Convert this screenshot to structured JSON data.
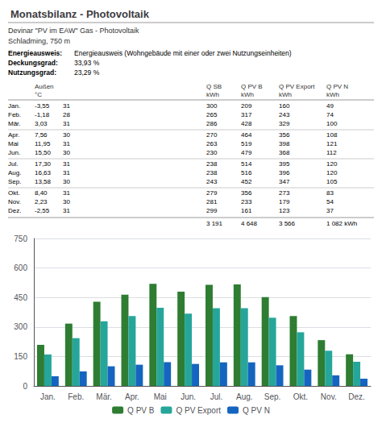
{
  "chart_data": {
    "type": "bar",
    "title": "Monatsbilanz - Photovoltaik",
    "subtitle": "Devinar \"PV im EAW\" Gas - Photovoltaik",
    "annotations": [
      "Schladming, 750 m"
    ],
    "info": [
      {
        "label": "Energieausweis:",
        "text": "Energieausweis (Wohngebäude mit einer oder zwei Nutzungseinheiten)"
      },
      {
        "label": "Deckungsgrad:",
        "text": "33,93 %"
      },
      {
        "label": "Nutzungsgrad:",
        "text": "23,29 %"
      }
    ],
    "categories": [
      "Jan.",
      "Feb.",
      "Mär.",
      "Apr.",
      "Mai",
      "Jun.",
      "Jul.",
      "Aug.",
      "Sep.",
      "Okt.",
      "Nov.",
      "Dez."
    ],
    "table": {
      "columns": [
        {
          "header": "Außen",
          "unit": "°C",
          "values": [
            {
              "value": -3.55,
              "label": "-3,55"
            },
            {
              "value": -1.18,
              "label": "-1,18"
            },
            {
              "value": 3.03,
              "label": "3,03"
            },
            {
              "value": 7.56,
              "label": "7,56"
            },
            {
              "value": 11.95,
              "label": "11,95"
            },
            {
              "value": 15.5,
              "label": "15,50"
            },
            {
              "value": 17.3,
              "label": "17,30"
            },
            {
              "value": 16.63,
              "label": "16,63"
            },
            {
              "value": 13.58,
              "label": "13,58"
            },
            {
              "value": 8.4,
              "label": "8,40"
            },
            {
              "value": 2.23,
              "label": "2,23"
            },
            {
              "value": -2.55,
              "label": "-2,55"
            }
          ]
        },
        {
          "values": [
            31,
            28,
            31,
            30,
            31,
            30,
            31,
            31,
            30,
            31,
            30,
            31
          ]
        },
        {
          "header": "Q SB",
          "unit": "kWh",
          "values": [
            300,
            265,
            286,
            270,
            263,
            230,
            238,
            238,
            243,
            279,
            281,
            299
          ],
          "total": "3 191"
        },
        {
          "header": "Q PV B",
          "unit": "kWh",
          "values": [
            209,
            317,
            428,
            464,
            519,
            479,
            514,
            516,
            452,
            356,
            233,
            161
          ],
          "total": "4 648"
        },
        {
          "header": "Q PV Export",
          "unit": "kWh",
          "values": [
            160,
            243,
            329,
            356,
            398,
            368,
            395,
            396,
            347,
            273,
            179,
            123
          ],
          "total": "3 566"
        },
        {
          "header": "Q PV N",
          "unit": "kWh",
          "values": [
            49,
            74,
            100,
            108,
            121,
            112,
            120,
            120,
            105,
            83,
            54,
            37
          ],
          "total": "1 082 kWh"
        }
      ]
    },
    "series": [
      {
        "name": "Q PV B",
        "color": "#2e7d32",
        "values": [
          209,
          317,
          428,
          464,
          519,
          479,
          514,
          516,
          452,
          356,
          233,
          161
        ]
      },
      {
        "name": "Q PV Export",
        "color": "#26a69a",
        "values": [
          160,
          243,
          329,
          356,
          398,
          368,
          395,
          396,
          347,
          273,
          179,
          123
        ]
      },
      {
        "name": "Q PV N",
        "color": "#1565c0",
        "values": [
          49,
          74,
          100,
          108,
          121,
          112,
          120,
          120,
          105,
          83,
          54,
          37
        ]
      }
    ],
    "ylim": [
      0,
      750
    ],
    "yticks": [
      0,
      150,
      300,
      450,
      600,
      750
    ],
    "grid": true,
    "legend": "bottom"
  }
}
